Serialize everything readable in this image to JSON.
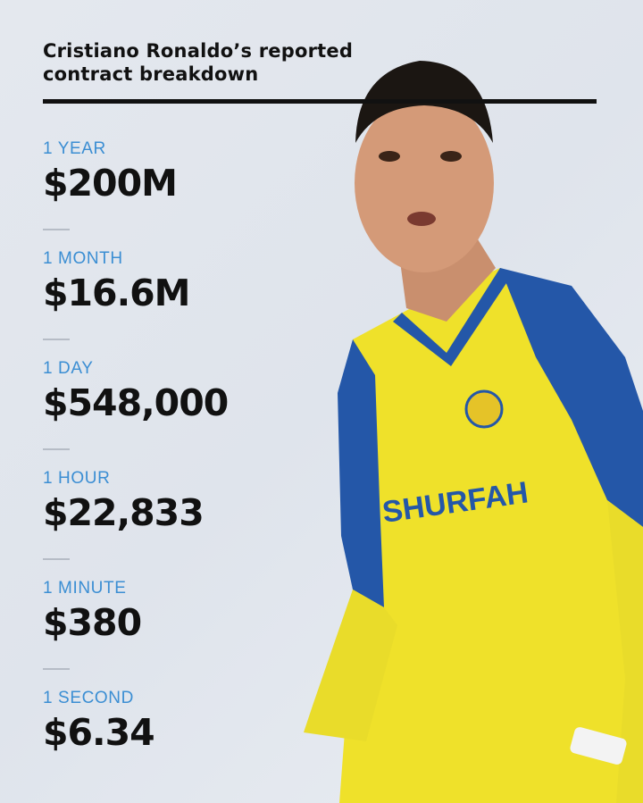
{
  "title": "Cristiano Ronaldo’s reported contract breakdown",
  "colors": {
    "label": "#3b8ed3",
    "value": "#111111",
    "background": "#e2e6ed",
    "jersey_yellow": "#f2e72a",
    "jersey_blue": "#2457a8"
  },
  "stats": [
    {
      "label": "1 YEAR",
      "value": "$200M"
    },
    {
      "label": "1 MONTH",
      "value": "$16.6M"
    },
    {
      "label": "1 DAY",
      "value": "$548,000"
    },
    {
      "label": "1 HOUR",
      "value": "$22,833"
    },
    {
      "label": "1 MINUTE",
      "value": "$380"
    },
    {
      "label": "1 SECOND",
      "value": "$6.34"
    }
  ],
  "photo": {
    "sponsor": "SHURFAH"
  }
}
